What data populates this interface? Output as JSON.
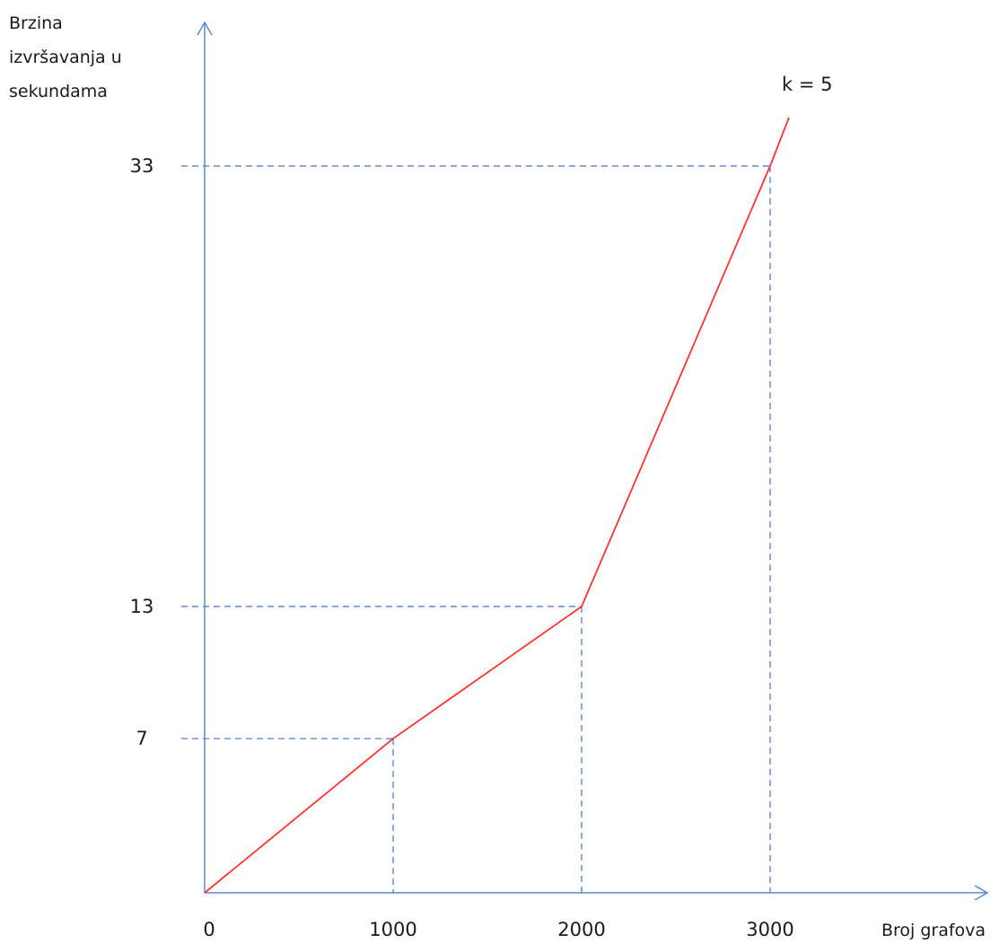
{
  "chart_data": {
    "type": "line",
    "title": "",
    "ylabel_lines": [
      "Brzina",
      "izvršavanja u",
      "sekundama"
    ],
    "xlabel": "Broj grafova",
    "x_ticks": [
      0,
      1000,
      2000,
      3000
    ],
    "x_tick_labels": [
      "0",
      "1000",
      "2000",
      "3000"
    ],
    "y_ticks": [
      7,
      13,
      33
    ],
    "y_tick_labels": [
      "7",
      "13",
      "33"
    ],
    "xlim": [
      0,
      4000
    ],
    "ylim": [
      0,
      40
    ],
    "grid": false,
    "reference_lines": "dashed guides from each labeled point to both axes",
    "series": [
      {
        "name": "k = 5",
        "x": [
          0,
          1000,
          2000,
          3000,
          3100
        ],
        "y": [
          0,
          7,
          13,
          33,
          35.2
        ]
      }
    ]
  },
  "colors": {
    "axis": "#5b8bd0",
    "guide": "#4472c4",
    "series": "#ff3333",
    "text": "#1a1a1a"
  }
}
